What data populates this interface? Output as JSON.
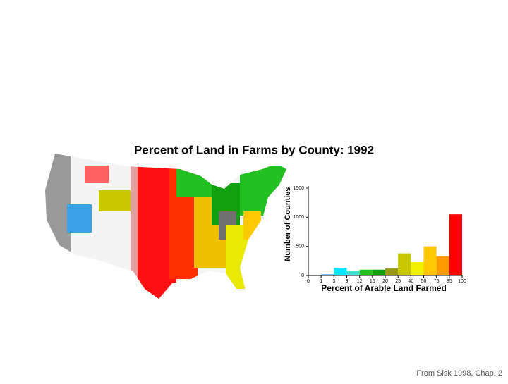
{
  "chart_data": {
    "type": "histogram",
    "title": "Percent of Land in Farms by County: 1992",
    "xlabel": "Percent of Arable Land Farmed",
    "ylabel": "Number of Counties",
    "bins": [
      0,
      1,
      3,
      9,
      12,
      16,
      20,
      25,
      40,
      50,
      75,
      85,
      100
    ],
    "values": [
      0,
      20,
      130,
      75,
      100,
      100,
      120,
      380,
      230,
      500,
      330,
      1050
    ],
    "colors": [
      "#3060ff",
      "#3aa0e8",
      "#00e8ff",
      "#40e0d0",
      "#22c022",
      "#10a010",
      "#9a9a10",
      "#c8c800",
      "#f0f000",
      "#ffc800",
      "#ff9900",
      "#ff0000"
    ],
    "ylim": [
      0,
      1500
    ],
    "yticks": [
      0,
      500,
      1000,
      1500
    ],
    "xticks": [
      0,
      1,
      3,
      9,
      12,
      16,
      20,
      25,
      40,
      50,
      75,
      85,
      100
    ]
  },
  "footer": "From Sisk 1998, Chap. 2"
}
